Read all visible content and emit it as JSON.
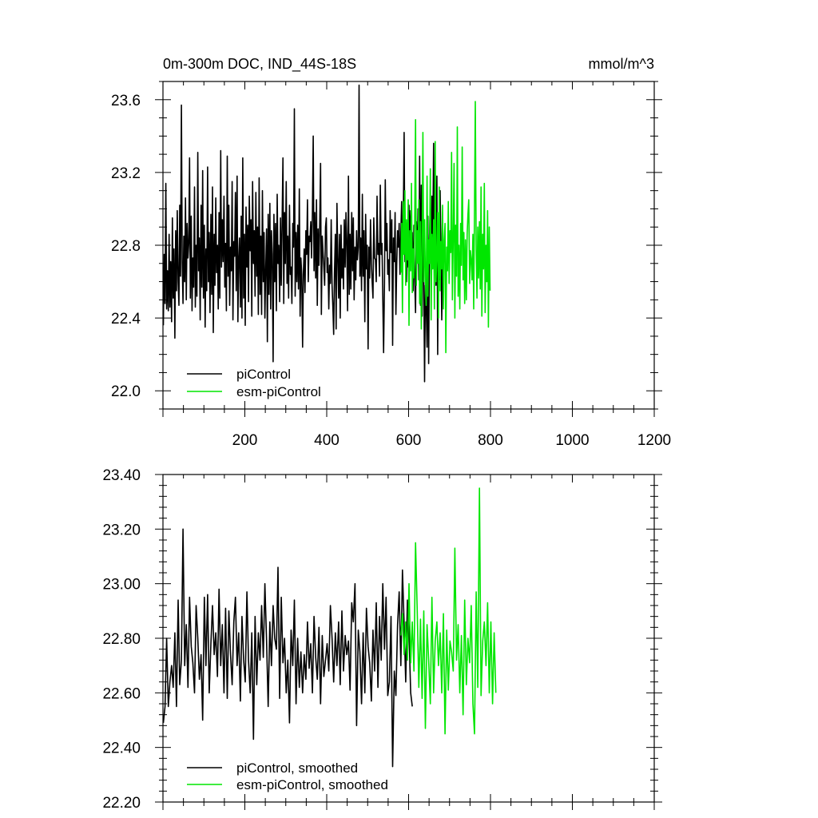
{
  "chart_data": [
    {
      "type": "line",
      "title": "0m-300m DOC, IND_44S-18S",
      "units_label": "mmol/m^3",
      "xlim": [
        0,
        1200
      ],
      "ylim": [
        21.9,
        23.7
      ],
      "x_ticks": [
        200,
        400,
        600,
        800,
        1000,
        1200
      ],
      "y_ticks": [
        22.0,
        22.4,
        22.8,
        23.2,
        23.6
      ],
      "y_tick_labels": [
        "22.0",
        "22.4",
        "22.8",
        "23.2",
        "23.6"
      ],
      "legend_position": "bottom-left",
      "series": [
        {
          "name": "piControl",
          "color": "#000000",
          "x_start": 1,
          "x_step": 2,
          "values": [
            22.36,
            22.75,
            22.48,
            23.14,
            22.45,
            22.66,
            22.44,
            22.86,
            22.46,
            22.71,
            22.38,
            22.95,
            22.51,
            22.78,
            22.29,
            22.88,
            22.55,
            22.99,
            22.6,
            22.47,
            23.02,
            22.63,
            23.57,
            22.71,
            22.48,
            22.85,
            22.6,
            23.06,
            22.5,
            22.92,
            22.73,
            22.81,
            23.28,
            22.51,
            22.96,
            22.44,
            22.73,
            22.57,
            23.12,
            22.46,
            22.8,
            22.52,
            23.31,
            22.66,
            22.84,
            22.39,
            23.02,
            22.57,
            23.21,
            22.51,
            22.91,
            22.35,
            22.78,
            22.55,
            23.23,
            22.6,
            22.87,
            22.43,
            22.97,
            22.53,
            23.12,
            22.32,
            22.86,
            22.58,
            23.06,
            22.65,
            22.8,
            22.45,
            22.98,
            22.51,
            23.32,
            22.68,
            22.94,
            22.71,
            23.07,
            22.57,
            22.81,
            22.44,
            23.29,
            22.63,
            23.02,
            22.47,
            22.79,
            22.66,
            23.15,
            22.39,
            22.82,
            22.74,
            23.09,
            22.55,
            23.18,
            22.38,
            22.72,
            22.84,
            22.46,
            22.96,
            22.4,
            23.28,
            22.51,
            22.86,
            22.36,
            23.01,
            22.68,
            22.91,
            22.49,
            23.07,
            22.77,
            22.94,
            22.41,
            23.15,
            22.7,
            22.88,
            22.52,
            23.09,
            22.63,
            22.9,
            22.42,
            23.17,
            22.53,
            22.85,
            22.42,
            23.1,
            22.6,
            22.87,
            22.4,
            22.66,
            22.89,
            22.27,
            22.97,
            22.53,
            23.03,
            22.45,
            22.88,
            22.75,
            22.16,
            22.97,
            22.6,
            22.92,
            22.44,
            23.08,
            22.7,
            22.8,
            22.49,
            22.95,
            22.58,
            22.91,
            23.28,
            22.48,
            22.98,
            22.7,
            23.15,
            22.59,
            22.85,
            22.51,
            23.02,
            22.64,
            22.68,
            22.48,
            22.92,
            22.79,
            23.55,
            22.52,
            22.87,
            22.6,
            22.91,
            22.56,
            23.11,
            22.41,
            22.73,
            22.64,
            22.24,
            22.65,
            22.78,
            22.54,
            22.88,
            22.75,
            23.05,
            22.6,
            22.85,
            22.82,
            22.93,
            22.73,
            22.98,
            23.4,
            22.66,
            22.98,
            22.62,
            23.05,
            22.47,
            22.89,
            22.69,
            22.93,
            23.25,
            22.42,
            22.85,
            22.76,
            22.68,
            22.58,
            22.9,
            22.95,
            22.65,
            22.73,
            22.45,
            22.69,
            22.59,
            22.94,
            22.58,
            22.46,
            22.31,
            22.65,
            22.86,
            22.34,
            23.03,
            22.74,
            22.51,
            22.86,
            22.4,
            22.91,
            22.62,
            22.78,
            22.56,
            22.94,
            22.68,
            22.98,
            22.82,
            22.44,
            23.18,
            22.53,
            22.86,
            22.56,
            22.98,
            22.66,
            22.95,
            22.5,
            22.79,
            22.61,
            22.88,
            22.72,
            22.79,
            23.68,
            22.63,
            22.84,
            22.55,
            23.08,
            22.63,
            22.88,
            22.38,
            22.97,
            22.67,
            22.8,
            22.23,
            22.79,
            22.62,
            22.94,
            22.7,
            22.6,
            22.51,
            22.95,
            22.73,
            22.72,
            22.6,
            23.07,
            22.75,
            22.81,
            22.63,
            23.13,
            22.75,
            22.81,
            22.51,
            22.21,
            22.59,
            23.16,
            22.77,
            22.92,
            22.64,
            22.72,
            22.55,
            22.99,
            22.76,
            22.94,
            22.25,
            22.84,
            22.71,
            22.98,
            22.42,
            22.69,
            22.88,
            22.79,
            22.92,
            22.64,
            22.87,
            23.04,
            22.73,
            22.9,
            23.42,
            22.71,
            22.92,
            22.6,
            22.84,
            22.68,
            23.02,
            22.81,
            22.99,
            22.71,
            22.87,
            22.55,
            22.91,
            22.6,
            22.43,
            22.93,
            22.71,
            23.0,
            22.61,
            23.29,
            22.47,
            23.13,
            22.41,
            22.92,
            22.62,
            22.05,
            22.58,
            22.49,
            22.24,
            22.96,
            22.15,
            22.83,
            23.04,
            22.64,
            23.07,
            22.8,
            23.36,
            22.73,
            22.96,
            22.58,
            23.18,
            22.2,
            22.9,
            22.61,
            23.1,
            22.76,
            22.39,
            22.71,
            22.6
          ]
        },
        {
          "name": "esm-piControl",
          "color": "#00e600",
          "x_start": 581,
          "x_step": 2,
          "values": [
            22.65,
            22.92,
            22.43,
            23.04,
            22.75,
            23.1,
            22.58,
            22.94,
            22.72,
            23.05,
            22.36,
            22.88,
            22.66,
            23.14,
            22.54,
            22.78,
            22.62,
            22.96,
            23.49,
            22.58,
            22.88,
            22.7,
            23.05,
            22.48,
            22.93,
            22.34,
            22.76,
            23.42,
            22.6,
            22.94,
            22.63,
            22.47,
            23.18,
            22.52,
            22.83,
            22.7,
            23.22,
            22.39,
            22.86,
            22.67,
            22.94,
            22.45,
            23.37,
            22.6,
            22.73,
            22.98,
            22.4,
            23.12,
            22.55,
            22.82,
            22.67,
            23.02,
            22.45,
            22.83,
            22.92,
            22.21,
            22.79,
            22.66,
            23.04,
            22.59,
            22.88,
            22.76,
            23.31,
            22.5,
            22.85,
            23.25,
            22.4,
            22.91,
            22.63,
            23.45,
            22.52,
            22.8,
            22.45,
            22.92,
            22.69,
            23.34,
            22.61,
            22.87,
            22.48,
            22.83,
            22.5,
            22.86,
            22.97,
            23.05,
            22.59,
            22.77,
            22.72,
            22.61,
            22.86,
            22.45,
            23.0,
            23.59,
            22.78,
            22.51,
            22.9,
            22.62,
            22.93,
            22.56,
            23.12,
            22.41,
            22.86,
            22.67,
            23.14,
            22.43,
            22.8,
            22.6,
            22.99,
            22.35,
            22.9,
            22.55
          ]
        }
      ]
    },
    {
      "type": "line",
      "title": "",
      "xlim": [
        0,
        1200
      ],
      "ylim": [
        22.2,
        23.4
      ],
      "y_ticks": [
        22.2,
        22.4,
        22.6,
        22.8,
        23.0,
        23.2,
        23.4
      ],
      "y_tick_labels": [
        "22.20",
        "22.40",
        "22.60",
        "22.80",
        "23.00",
        "23.20",
        "23.40"
      ],
      "legend_position": "bottom-left",
      "series": [
        {
          "name": "piControl, smoothed",
          "color": "#000000",
          "x_start": 1,
          "x_step": 4,
          "values": [
            22.49,
            22.55,
            22.8,
            22.55,
            22.64,
            22.7,
            22.62,
            22.82,
            22.55,
            22.94,
            22.63,
            22.72,
            23.2,
            22.7,
            22.85,
            22.62,
            22.95,
            22.77,
            22.71,
            22.6,
            22.92,
            22.8,
            22.65,
            22.74,
            22.5,
            22.95,
            22.7,
            22.96,
            22.6,
            22.78,
            22.92,
            22.74,
            22.82,
            22.66,
            22.98,
            22.7,
            22.85,
            22.6,
            22.91,
            22.58,
            22.9,
            22.74,
            22.63,
            22.86,
            22.95,
            22.7,
            22.82,
            22.57,
            22.88,
            22.72,
            22.64,
            22.97,
            22.72,
            22.6,
            22.82,
            22.43,
            22.88,
            22.63,
            22.82,
            22.72,
            22.92,
            22.73,
            23.0,
            22.79,
            22.55,
            22.86,
            22.7,
            22.92,
            22.8,
            22.76,
            23.06,
            22.58,
            22.95,
            22.71,
            22.8,
            22.6,
            22.72,
            22.49,
            22.83,
            22.7,
            22.94,
            22.56,
            22.8,
            22.62,
            22.75,
            22.6,
            22.74,
            22.65,
            22.86,
            22.69,
            22.78,
            22.6,
            22.88,
            22.73,
            22.65,
            22.84,
            22.56,
            22.81,
            22.66,
            22.72,
            22.78,
            22.68,
            22.92,
            22.8,
            22.64,
            22.82,
            22.7,
            22.86,
            22.63,
            22.9,
            22.68,
            22.81,
            22.74,
            22.79,
            22.61,
            22.93,
            22.86,
            23.0,
            22.48,
            22.83,
            22.75,
            22.56,
            22.82,
            22.6,
            22.91,
            22.77,
            22.71,
            22.57,
            22.83,
            22.68,
            22.93,
            22.62,
            22.88,
            22.72,
            23.0,
            22.76,
            22.95,
            22.59,
            22.64,
            22.88,
            22.33,
            22.68,
            22.59,
            22.85,
            22.97,
            22.7,
            23.05,
            22.85,
            22.64,
            22.94,
            22.82,
            22.6,
            22.55
          ]
        },
        {
          "name": "esm-piControl, smoothed",
          "color": "#00e600",
          "x_start": 581,
          "x_step": 4,
          "values": [
            22.81,
            22.89,
            22.74,
            22.86,
            22.72,
            23.0,
            22.71,
            22.86,
            22.68,
            23.15,
            22.9,
            22.62,
            22.87,
            22.58,
            22.9,
            22.47,
            22.85,
            22.72,
            22.56,
            22.95,
            22.6,
            22.79,
            22.86,
            22.7,
            22.82,
            22.6,
            22.89,
            22.45,
            22.83,
            22.61,
            22.79,
            22.75,
            22.68,
            23.13,
            22.72,
            22.85,
            22.6,
            22.81,
            22.52,
            22.94,
            22.63,
            22.8,
            22.71,
            22.92,
            22.56,
            22.45,
            22.97,
            22.62,
            23.35,
            22.59,
            22.79,
            22.86,
            22.7,
            22.93,
            22.6,
            22.86,
            22.56,
            22.82,
            22.6
          ]
        }
      ]
    }
  ]
}
